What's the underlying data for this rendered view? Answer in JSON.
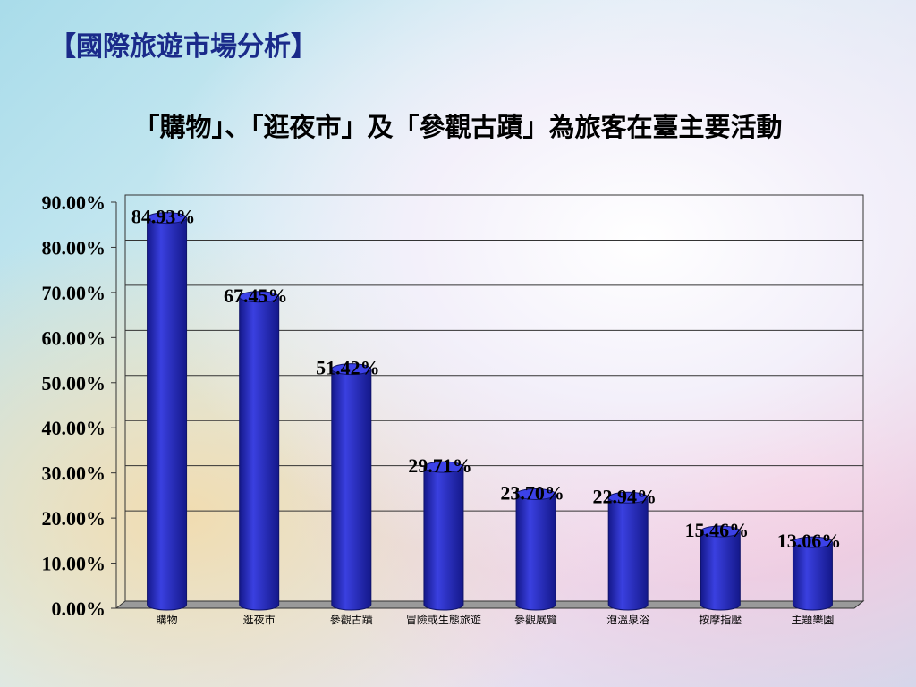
{
  "header": {
    "title": "【國際旅遊市場分析】",
    "subtitle": "「購物」、「逛夜市」及「參觀古蹟」為旅客在臺主要活動"
  },
  "chart_data": {
    "type": "bar",
    "color": "#2a2fc0",
    "categories": [
      "購物",
      "逛夜市",
      "參觀古蹟",
      "冒險或生態旅遊",
      "參觀展覽",
      "泡溫泉浴",
      "按摩指壓",
      "主題樂園"
    ],
    "values": [
      84.93,
      67.45,
      51.42,
      29.71,
      23.7,
      22.94,
      15.46,
      13.06
    ],
    "value_labels": [
      "84.93%",
      "67.45%",
      "51.42%",
      "29.71%",
      "23.70%",
      "22.94%",
      "15.46%",
      "13.06%"
    ],
    "ylim": [
      0,
      90
    ],
    "yticks": [
      {
        "value": 0,
        "label": "0.00%"
      },
      {
        "value": 10,
        "label": "10.00%"
      },
      {
        "value": 20,
        "label": "20.00%"
      },
      {
        "value": 30,
        "label": "30.00%"
      },
      {
        "value": 40,
        "label": "40.00%"
      },
      {
        "value": 50,
        "label": "50.00%"
      },
      {
        "value": 60,
        "label": "60.00%"
      },
      {
        "value": 70,
        "label": "70.00%"
      },
      {
        "value": 80,
        "label": "80.00%"
      },
      {
        "value": 90,
        "label": "90.00%"
      }
    ],
    "grid": true
  }
}
